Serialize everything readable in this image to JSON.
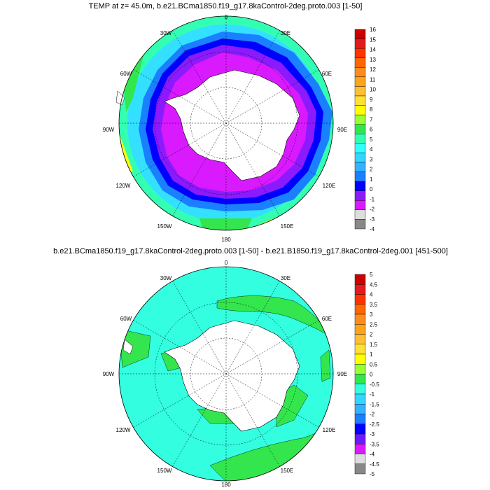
{
  "maps": [
    {
      "title": "TEMP at z=  45.0m, b.e21.BCma1850.f19_g17.8kaControl-2deg.proto.003 [1-50]",
      "lon_labels": [
        "0",
        "30E",
        "60E",
        "90E",
        "120E",
        "150E",
        "180",
        "150W",
        "120W",
        "90W",
        "60W",
        "30W"
      ],
      "colorbar": {
        "labels": [
          "16",
          "15",
          "14",
          "13",
          "12",
          "11",
          "10",
          "9",
          "8",
          "7",
          "6",
          "5",
          "4",
          "3",
          "2",
          "1",
          "0",
          "-1",
          "-2",
          "-3",
          "-4"
        ],
        "colors": [
          "#cc0000",
          "#e41a1c",
          "#ff3300",
          "#ff6600",
          "#ff8c1a",
          "#ffa31a",
          "#ffbf33",
          "#ffe033",
          "#ffff00",
          "#99ff33",
          "#33e64d",
          "#33ffb3",
          "#33ffff",
          "#33d6ff",
          "#33b3ff",
          "#1a80ff",
          "#0000ff",
          "#8c1aff",
          "#d91aff",
          "#dddddd",
          "#888888"
        ]
      }
    },
    {
      "title": "b.e21.BCma1850.f19_g17.8kaControl-2deg.proto.003 [1-50] - b.e21.B1850.f19_g17.8kaControl-2deg.001 [451-500]",
      "lon_labels": [
        "0",
        "30E",
        "60E",
        "90E",
        "120E",
        "150E",
        "180",
        "150W",
        "120W",
        "90W",
        "60W",
        "30W"
      ],
      "colorbar": {
        "labels": [
          "5",
          "4.5",
          "4",
          "3.5",
          "3",
          "2.5",
          "2",
          "1.5",
          "1",
          "0.5",
          "0",
          "-0.5",
          "-1",
          "-1.5",
          "-2",
          "-2.5",
          "-3",
          "-3.5",
          "-4",
          "-4.5",
          "-5"
        ],
        "colors": [
          "#cc0000",
          "#e41a1c",
          "#ff3300",
          "#ff6600",
          "#ff8c1a",
          "#ffa31a",
          "#ffbf33",
          "#ffe033",
          "#ffff00",
          "#99ff33",
          "#33e64d",
          "#33ffe0",
          "#33d6ff",
          "#33b3ff",
          "#1a80ff",
          "#0000ff",
          "#6a1aff",
          "#d91aff",
          "#dddddd",
          "#888888"
        ]
      }
    }
  ]
}
